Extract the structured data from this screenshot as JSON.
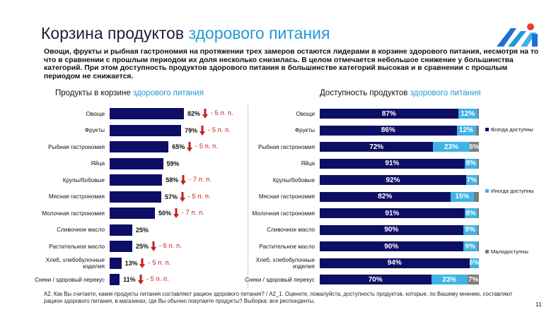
{
  "title": {
    "main": "Корзина продуктов ",
    "accent": "здорового питания"
  },
  "intro": "Овощи, фрукты и рыбная гастрономия на протяжении трех замеров остаются лидерами в корзине здорового питания, несмотря на то что в сравнении с прошлым периодом их доля несколько снизилась. В целом отмечается небольшое снижение у большинства категорий. При этом доступность продуктов здорового питания в большинстве категорий высокая и в сравнении с прошлым периодом не снижается.",
  "colors": {
    "navy": "#0e0e66",
    "light_blue": "#3fb2e6",
    "gray": "#7b7b7b",
    "accent_text": "#1f9ad6",
    "decrease": "#c81e1e"
  },
  "chart_data": [
    {
      "type": "bar",
      "orientation": "horizontal",
      "title": "Продукты в корзине ",
      "title_accent": "здорового питания",
      "categories": [
        "Овощи",
        "Фрукты",
        "Рыбная гастрономия",
        "Яйца",
        "Крупы/бобовые",
        "Мясная гастрономия",
        "Молочная гастрономия",
        "Сливочное масло",
        "Растительное масло",
        "Хлеб, хлебобулочные изделия",
        "Снеки / здоровый перекус"
      ],
      "values": [
        82,
        79,
        65,
        59,
        58,
        57,
        50,
        25,
        25,
        13,
        11
      ],
      "value_labels": [
        "82%",
        "79%",
        "65%",
        "59%",
        "58%",
        "57%",
        "50%",
        "25%",
        "25%",
        "13%",
        "11%"
      ],
      "changes": [
        "- 5 п. п.",
        "- 5 п. п.",
        "- 5 п. п.",
        "",
        "- 7 п. п.",
        "- 5 п. п.",
        "- 7 п. п.",
        "",
        "- 6 п. п.",
        "- 5 п. п.",
        "- 5 п. п."
      ],
      "unit": "%"
    },
    {
      "type": "bar",
      "orientation": "horizontal",
      "stacked": true,
      "title": "Доступность продуктов ",
      "title_accent": "здорового питания",
      "categories": [
        "Овощи",
        "Фрукты",
        "Рыбная гастрономия",
        "Яйца",
        "Крупы/бобовые",
        "Мясная гастрономия",
        "Молочная гастрономия",
        "Сливочное масло",
        "Растительное масло",
        "Хлеб, хлебобулочные изделия",
        "Снеки / здоровый перекус"
      ],
      "series": [
        {
          "name": "Всегда доступны",
          "values": [
            87,
            86,
            72,
            91,
            92,
            82,
            91,
            90,
            90,
            94,
            70
          ],
          "labels": [
            "87%",
            "86%",
            "72%",
            "91%",
            "92%",
            "82%",
            "91%",
            "90%",
            "90%",
            "94%",
            "70%"
          ],
          "color": "#0e0e66"
        },
        {
          "name": "Иногда доступны",
          "values": [
            12,
            12,
            23,
            8,
            7,
            15,
            8,
            9,
            9,
            6,
            23
          ],
          "labels": [
            "12%",
            "12%",
            "23%",
            "8%",
            "7%",
            "15%",
            "8%",
            "9%",
            "9%",
            "6%",
            "23%"
          ],
          "color": "#3fb2e6"
        },
        {
          "name": "Малодоступны",
          "values": [
            1,
            2,
            6,
            1,
            1,
            3,
            1,
            1,
            1,
            0,
            7
          ],
          "labels": [
            "",
            "",
            "6%",
            "",
            "",
            "",
            "",
            "",
            "",
            "",
            "7%"
          ],
          "color": "#7b7b7b"
        }
      ],
      "legend_position": "right",
      "unit": "%"
    }
  ],
  "footnote": "А2. Как Вы считаете, какие продукты питания составляют рацион здорового питания? / А2_1. Оцените, пожалуйста, доступность продуктов, которые, по Вашему мнению, составляют рацион здорового питания, в магазинах, где Вы обычно покупаете продукты? Выборка: все респонденты.",
  "page_number": "11"
}
